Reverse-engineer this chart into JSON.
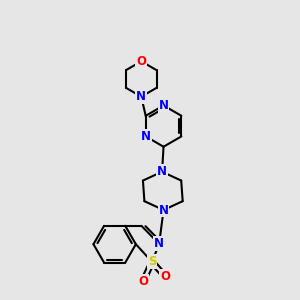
{
  "bg_color": "#e6e6e6",
  "bond_color": "#000000",
  "N_color": "#0000ff",
  "O_color": "#ff0000",
  "S_color": "#cccc00",
  "line_width": 1.5,
  "font_size": 8.5,
  "xlim": [
    0,
    10
  ],
  "ylim": [
    0,
    10
  ]
}
